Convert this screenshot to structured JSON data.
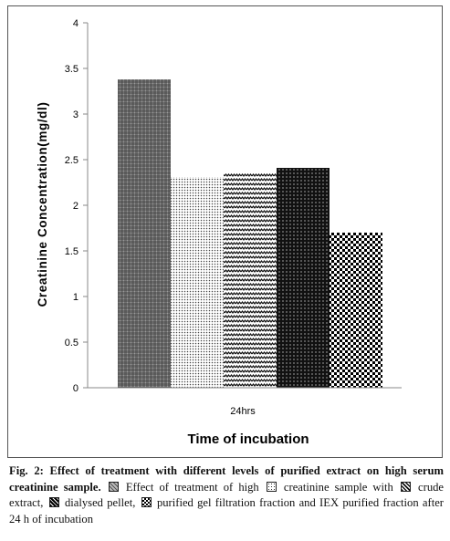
{
  "chart_data": {
    "type": "bar",
    "categories": [
      "24hrs"
    ],
    "series": [
      {
        "values": [
          3.38
        ],
        "pattern": "grid-dark"
      },
      {
        "values": [
          2.31
        ],
        "pattern": "dots"
      },
      {
        "values": [
          2.35
        ],
        "pattern": "zigzag"
      },
      {
        "values": [
          2.41
        ],
        "pattern": "diamond-dark"
      },
      {
        "values": [
          1.7
        ],
        "pattern": "checker"
      }
    ],
    "title": "",
    "xlabel": "Time of incubation",
    "ylabel": "Creatinine Concentration(mg/dl)",
    "ylim": [
      0,
      4
    ],
    "yticks": [
      "0",
      "0.5",
      "1",
      "1.5",
      "2",
      "2.5",
      "3",
      "3.5",
      "4"
    ],
    "grid": false,
    "legend": "none"
  },
  "caption": {
    "lead": "Fig. 2: Effect of treatment with different levels of purified extract on high serum creatinine sample.",
    "part1": " Effect of treatment of high",
    "part2": " creatinine sample with",
    "part3": " crude extract,",
    "part4": " dialysed pellet,",
    "part5": " purified gel filtration fraction and IEX purified fraction after 24 h of incubation"
  },
  "colors": {
    "bar_fill": "#000000",
    "axis": "#888888",
    "frame": "#555555"
  }
}
